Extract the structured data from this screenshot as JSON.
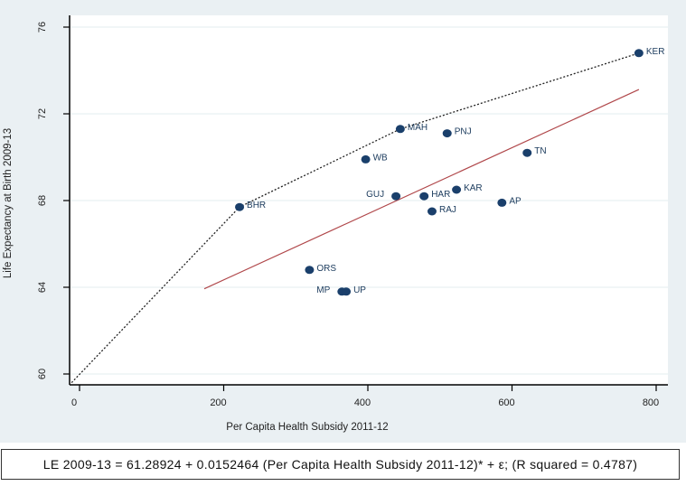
{
  "chart_data": {
    "type": "scatter",
    "title": "",
    "xlabel": "Per Capita Health Subsidy 2011-12",
    "ylabel": "Life Expectancy at Birth 2009-13",
    "xlim": [
      -12,
      812
    ],
    "ylim": [
      59.5,
      76.5
    ],
    "xticks": [
      0,
      200,
      400,
      600,
      800
    ],
    "xtick_labels": [
      "0",
      "200",
      "400",
      "600",
      "800"
    ],
    "yticks": [
      60,
      64,
      68,
      72,
      76
    ],
    "ytick_labels": [
      "60",
      "64",
      "68",
      "72",
      "76"
    ],
    "grid": "horizontal",
    "points": [
      {
        "label": "KER",
        "x": 776,
        "y": 74.8,
        "label_side": "right"
      },
      {
        "label": "MAH",
        "x": 445,
        "y": 71.3,
        "label_side": "right"
      },
      {
        "label": "PNJ",
        "x": 510,
        "y": 71.1,
        "label_side": "right"
      },
      {
        "label": "TN",
        "x": 621,
        "y": 70.2,
        "label_side": "right"
      },
      {
        "label": "WB",
        "x": 397,
        "y": 69.9,
        "label_side": "right"
      },
      {
        "label": "GUJ",
        "x": 439,
        "y": 68.2,
        "label_side": "left"
      },
      {
        "label": "HAR",
        "x": 478,
        "y": 68.2,
        "label_side": "right"
      },
      {
        "label": "KAR",
        "x": 523,
        "y": 68.5,
        "label_side": "right"
      },
      {
        "label": "AP",
        "x": 586,
        "y": 67.9,
        "label_side": "right"
      },
      {
        "label": "RAJ",
        "x": 489,
        "y": 67.5,
        "label_side": "right"
      },
      {
        "label": "BHR",
        "x": 222,
        "y": 67.7,
        "label_side": "right"
      },
      {
        "label": "ORS",
        "x": 319,
        "y": 64.8,
        "label_side": "right"
      },
      {
        "label": "MP",
        "x": 364,
        "y": 63.8,
        "label_side": "left"
      },
      {
        "label": "UP",
        "x": 370,
        "y": 63.8,
        "label_side": "right"
      }
    ],
    "series": [
      {
        "name": "frontier",
        "style": "dotted",
        "color": "#222222",
        "x": [
          -11,
          222,
          445,
          776
        ],
        "y": [
          59.6,
          67.7,
          71.3,
          74.8
        ]
      },
      {
        "name": "linear fit",
        "style": "solid",
        "color": "#b0474a",
        "x": [
          173,
          776
        ],
        "y": [
          63.93,
          73.12
        ]
      }
    ],
    "regression": {
      "intercept": 61.28924,
      "slope": 0.0152464,
      "r_squared": 0.4787
    },
    "colors": {
      "marker": "#1a3f6b",
      "fit_line": "#b0474a",
      "frontier": "#222222",
      "background": "#eaf0f3",
      "plot_bg": "#ffffff",
      "grid": "#e3ecef"
    }
  },
  "equation_text": "LE 2009-13 = 61.28924 + 0.0152464 (Per Capita Health Subsidy 2011-12)* + ε; (R squared = 0.4787)"
}
